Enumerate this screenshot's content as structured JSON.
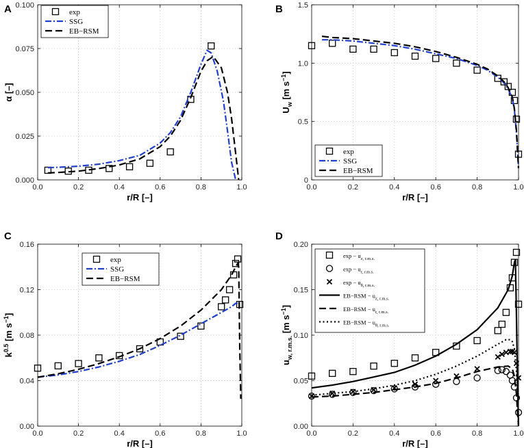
{
  "chart_data": [
    {
      "panel": "A",
      "type": "line",
      "title": "",
      "xlabel": "r/R [–]",
      "ylabel": "α [–]",
      "xlim": [
        0,
        1
      ],
      "ylim": [
        0,
        0.1
      ],
      "xticks": [
        "0.0",
        "0.2",
        "0.4",
        "0.6",
        "0.8",
        "1.0"
      ],
      "yticks": [
        "0.000",
        "0.025",
        "0.050",
        "0.075",
        "0.100"
      ],
      "legend_position": "top-left",
      "series": [
        {
          "name": "exp",
          "style": "square",
          "x": [
            0.05,
            0.15,
            0.25,
            0.35,
            0.45,
            0.55,
            0.65,
            0.75,
            0.85
          ],
          "y": [
            0.0055,
            0.005,
            0.0055,
            0.0065,
            0.0075,
            0.0095,
            0.016,
            0.046,
            0.0765
          ]
        },
        {
          "name": "SSG",
          "style": "dashdot",
          "color": "#1f3fcf",
          "x": [
            0.05,
            0.1,
            0.2,
            0.3,
            0.4,
            0.5,
            0.6,
            0.65,
            0.7,
            0.75,
            0.8,
            0.83,
            0.85,
            0.88,
            0.91,
            0.93,
            0.95,
            0.97
          ],
          "y": [
            0.007,
            0.0072,
            0.0078,
            0.009,
            0.011,
            0.014,
            0.021,
            0.027,
            0.036,
            0.05,
            0.066,
            0.074,
            0.0725,
            0.062,
            0.045,
            0.028,
            0.01,
            0.0
          ]
        },
        {
          "name": "EB−RSM",
          "style": "dashed",
          "color": "#000000",
          "x": [
            0.05,
            0.1,
            0.2,
            0.3,
            0.4,
            0.5,
            0.6,
            0.65,
            0.7,
            0.75,
            0.8,
            0.83,
            0.86,
            0.9,
            0.93,
            0.95,
            0.97,
            0.985
          ],
          "y": [
            0.004,
            0.0042,
            0.005,
            0.0065,
            0.0085,
            0.012,
            0.019,
            0.025,
            0.034,
            0.047,
            0.062,
            0.068,
            0.0705,
            0.064,
            0.05,
            0.035,
            0.015,
            0.0
          ]
        }
      ]
    },
    {
      "panel": "B",
      "type": "line",
      "title": "",
      "xlabel": "r/R [–]",
      "ylabel": "U",
      "ylabel_sub": "w",
      "ylabel_unit": "[m s",
      "ylabel_sup": "−1",
      "ylabel_close": "]",
      "xlim": [
        0,
        1
      ],
      "ylim": [
        0,
        1.5
      ],
      "xticks": [
        "0.0",
        "0.2",
        "0.4",
        "0.6",
        "0.8",
        "1.0"
      ],
      "yticks": [
        "0",
        "0.5",
        "1.0",
        "1.5"
      ],
      "legend_position": "bottom-left",
      "series": [
        {
          "name": "exp",
          "style": "square",
          "x": [
            0.0,
            0.1,
            0.2,
            0.3,
            0.4,
            0.5,
            0.6,
            0.7,
            0.8,
            0.9,
            0.93,
            0.95,
            0.97,
            0.98,
            0.99,
            1.0
          ],
          "y": [
            1.15,
            1.17,
            1.12,
            1.12,
            1.09,
            1.06,
            1.04,
            1.0,
            0.94,
            0.87,
            0.84,
            0.8,
            0.75,
            0.68,
            0.52,
            0.22
          ]
        },
        {
          "name": "SSG",
          "style": "dashdot",
          "color": "#1f3fcf",
          "x": [
            0.05,
            0.1,
            0.2,
            0.3,
            0.4,
            0.5,
            0.6,
            0.7,
            0.8,
            0.85,
            0.9,
            0.93,
            0.95,
            0.97,
            0.98,
            0.99,
            1.0
          ],
          "y": [
            1.2,
            1.2,
            1.19,
            1.17,
            1.15,
            1.12,
            1.08,
            1.04,
            0.98,
            0.94,
            0.88,
            0.83,
            0.78,
            0.7,
            0.6,
            0.4,
            0.1
          ]
        },
        {
          "name": "EB−RSM",
          "style": "dashed",
          "color": "#000000",
          "x": [
            0.05,
            0.1,
            0.2,
            0.3,
            0.4,
            0.5,
            0.6,
            0.7,
            0.8,
            0.85,
            0.9,
            0.93,
            0.95,
            0.97,
            0.98,
            0.99,
            1.0
          ],
          "y": [
            1.23,
            1.22,
            1.21,
            1.19,
            1.17,
            1.14,
            1.1,
            1.05,
            0.99,
            0.95,
            0.89,
            0.84,
            0.79,
            0.71,
            0.61,
            0.42,
            0.1
          ]
        }
      ]
    },
    {
      "panel": "C",
      "type": "line",
      "title": "",
      "xlabel": "r/R [–]",
      "ylabel": "k",
      "ylabel_sup": "0.5",
      "ylabel_unit": "[m s",
      "ylabel_sup2": "−1",
      "ylabel_close": "]",
      "xlim": [
        0,
        1
      ],
      "ylim": [
        0,
        0.16
      ],
      "xticks": [
        "0.0",
        "0.2",
        "0.4",
        "0.6",
        "0.8",
        "1.0"
      ],
      "yticks": [
        "0.00",
        "0.04",
        "0.08",
        "0.12",
        "0.16"
      ],
      "legend_position": "top-center",
      "series": [
        {
          "name": "exp",
          "style": "square",
          "x": [
            0.0,
            0.1,
            0.2,
            0.3,
            0.4,
            0.5,
            0.6,
            0.7,
            0.8,
            0.9,
            0.92,
            0.94,
            0.96,
            0.97,
            0.98,
            0.99
          ],
          "y": [
            0.051,
            0.053,
            0.055,
            0.06,
            0.062,
            0.068,
            0.074,
            0.079,
            0.088,
            0.105,
            0.111,
            0.12,
            0.133,
            0.143,
            0.147,
            0.107
          ]
        },
        {
          "name": "SSG",
          "style": "dashdot",
          "color": "#1f3fcf",
          "x": [
            0.0,
            0.1,
            0.2,
            0.3,
            0.4,
            0.5,
            0.6,
            0.7,
            0.8,
            0.9,
            0.95,
            0.97,
            0.98
          ],
          "y": [
            0.043,
            0.045,
            0.048,
            0.052,
            0.057,
            0.063,
            0.071,
            0.08,
            0.09,
            0.1,
            0.105,
            0.108,
            0.108
          ]
        },
        {
          "name": "EB−RSM",
          "style": "dashed",
          "color": "#000000",
          "x": [
            0.0,
            0.1,
            0.2,
            0.3,
            0.4,
            0.5,
            0.6,
            0.7,
            0.8,
            0.9,
            0.95,
            0.97,
            0.98,
            0.985,
            0.99,
            0.995
          ],
          "y": [
            0.043,
            0.046,
            0.05,
            0.055,
            0.061,
            0.068,
            0.077,
            0.088,
            0.102,
            0.12,
            0.133,
            0.14,
            0.143,
            0.14,
            0.07,
            0.024
          ]
        }
      ]
    },
    {
      "panel": "D",
      "type": "line",
      "title": "",
      "xlabel": "r/R [–]",
      "ylabel": "u",
      "ylabel_sub": "w, r.m.s.",
      "ylabel_unit": "[m s",
      "ylabel_sup": "−1",
      "ylabel_close": "]",
      "xlim": [
        0,
        1
      ],
      "ylim": [
        0,
        0.2
      ],
      "xticks": [
        "0.0",
        "0.2",
        "0.4",
        "0.6",
        "0.8",
        "1.0"
      ],
      "yticks": [
        "0.00",
        "0.05",
        "0.10",
        "0.15",
        "0.20"
      ],
      "legend_position": "top-left",
      "series": [
        {
          "name": "exp − u",
          "sub": "z, r.m.s.",
          "style": "square",
          "x": [
            0.0,
            0.1,
            0.2,
            0.3,
            0.4,
            0.5,
            0.6,
            0.7,
            0.8,
            0.9,
            0.92,
            0.94,
            0.96,
            0.97,
            0.98,
            0.99,
            1.0
          ],
          "y": [
            0.055,
            0.058,
            0.06,
            0.066,
            0.069,
            0.075,
            0.081,
            0.088,
            0.094,
            0.105,
            0.112,
            0.125,
            0.152,
            0.163,
            0.18,
            0.191,
            0.134
          ]
        },
        {
          "name": "exp − u",
          "sub": "r, r.m.s.",
          "style": "circle",
          "x": [
            0.0,
            0.1,
            0.2,
            0.3,
            0.4,
            0.5,
            0.6,
            0.7,
            0.8,
            0.9,
            0.92,
            0.94,
            0.96,
            0.97,
            0.98,
            0.99,
            1.0
          ],
          "y": [
            0.033,
            0.035,
            0.037,
            0.039,
            0.041,
            0.043,
            0.046,
            0.049,
            0.053,
            0.061,
            0.062,
            0.06,
            0.056,
            0.05,
            0.043,
            0.031,
            0.015
          ]
        },
        {
          "name": "exp − u",
          "sub": "θ, r.m.s.",
          "style": "cross",
          "x": [
            0.0,
            0.1,
            0.2,
            0.3,
            0.4,
            0.5,
            0.6,
            0.7,
            0.8,
            0.9,
            0.92,
            0.94,
            0.96,
            0.97,
            0.98,
            0.99,
            1.0
          ],
          "y": [
            0.033,
            0.036,
            0.038,
            0.04,
            0.042,
            0.046,
            0.05,
            0.055,
            0.063,
            0.076,
            0.079,
            0.081,
            0.082,
            0.082,
            0.081,
            0.069,
            0.053
          ]
        },
        {
          "name": "EB−RSM − u",
          "sub": "z, r.m.s.",
          "style": "solid",
          "color": "#000000",
          "x": [
            0.0,
            0.1,
            0.2,
            0.3,
            0.4,
            0.5,
            0.6,
            0.7,
            0.8,
            0.9,
            0.95,
            0.97,
            0.98,
            0.985,
            0.99,
            0.995,
            1.0
          ],
          "y": [
            0.042,
            0.045,
            0.049,
            0.054,
            0.059,
            0.067,
            0.077,
            0.09,
            0.106,
            0.13,
            0.15,
            0.165,
            0.18,
            0.183,
            0.12,
            0.05,
            0.0
          ]
        },
        {
          "name": "EB−RSM − u",
          "sub": "r, r.m.s.",
          "style": "dashed",
          "color": "#000000",
          "x": [
            0.0,
            0.1,
            0.2,
            0.3,
            0.4,
            0.5,
            0.6,
            0.7,
            0.8,
            0.9,
            0.95,
            0.97,
            0.98,
            0.99,
            0.995,
            1.0
          ],
          "y": [
            0.032,
            0.033,
            0.035,
            0.037,
            0.04,
            0.043,
            0.047,
            0.053,
            0.06,
            0.065,
            0.066,
            0.063,
            0.055,
            0.035,
            0.015,
            0.0
          ]
        },
        {
          "name": "EB−RSM − u",
          "sub": "θ, r.m.s.",
          "style": "dotted",
          "color": "#000000",
          "x": [
            0.0,
            0.1,
            0.2,
            0.3,
            0.4,
            0.5,
            0.6,
            0.7,
            0.8,
            0.9,
            0.94,
            0.96,
            0.97,
            0.98,
            0.99,
            1.0
          ],
          "y": [
            0.034,
            0.036,
            0.038,
            0.041,
            0.045,
            0.05,
            0.057,
            0.066,
            0.077,
            0.09,
            0.095,
            0.095,
            0.093,
            0.085,
            0.06,
            0.03
          ]
        }
      ]
    }
  ]
}
